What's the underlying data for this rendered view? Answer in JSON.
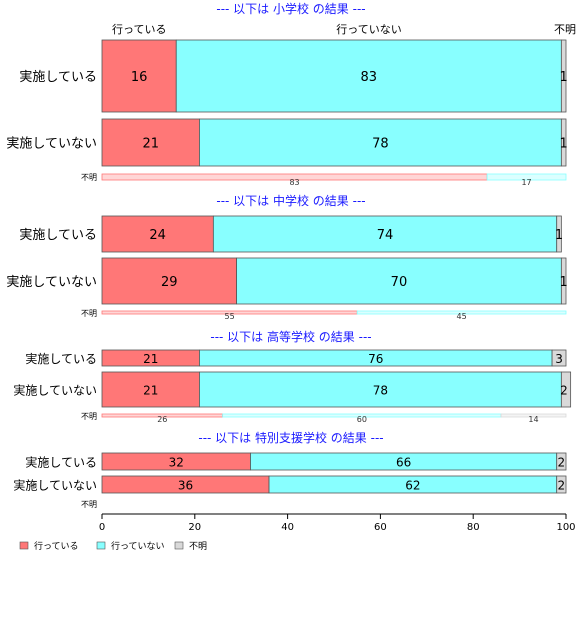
{
  "chart_data": {
    "type": "bar",
    "orientation": "horizontal",
    "stacked": true,
    "xlim": [
      0,
      100
    ],
    "x_ticks": [
      0,
      20,
      40,
      60,
      80,
      100
    ],
    "grid": false,
    "legend_position": "bottom-left",
    "top_labels": [
      "行っている",
      "行っていない",
      "不明"
    ],
    "series": [
      {
        "name": "行っている",
        "color": "#ff7777"
      },
      {
        "name": "行っていない",
        "color": "#88ffff"
      },
      {
        "name": "不明",
        "color": "#d9d9d9"
      }
    ],
    "panels": [
      {
        "title": "--- 以下は 小学校 の結果 ---",
        "rows": [
          {
            "label": "実施している",
            "values": [
              16,
              83,
              1
            ]
          },
          {
            "label": "実施していない",
            "values": [
              21,
              78,
              1
            ]
          }
        ],
        "unknown_row": {
          "label": "不明",
          "values": [
            83,
            17,
            0
          ]
        }
      },
      {
        "title": "--- 以下は 中学校 の結果 ---",
        "rows": [
          {
            "label": "実施している",
            "values": [
              24,
              74,
              1
            ]
          },
          {
            "label": "実施していない",
            "values": [
              29,
              70,
              1
            ]
          }
        ],
        "unknown_row": {
          "label": "不明",
          "values": [
            55,
            45,
            0
          ]
        }
      },
      {
        "title": "--- 以下は 高等学校 の結果 ---",
        "rows": [
          {
            "label": "実施している",
            "values": [
              21,
              76,
              3
            ]
          },
          {
            "label": "実施していない",
            "values": [
              21,
              78,
              2
            ]
          }
        ],
        "unknown_row": {
          "label": "不明",
          "values": [
            26,
            60,
            14
          ]
        }
      },
      {
        "title": "--- 以下は 特別支援学校 の結果 ---",
        "rows": [
          {
            "label": "実施している",
            "values": [
              32,
              66,
              2
            ]
          },
          {
            "label": "実施していない",
            "values": [
              36,
              62,
              2
            ]
          }
        ],
        "unknown_row": {
          "label": "不明",
          "values": []
        }
      }
    ]
  }
}
